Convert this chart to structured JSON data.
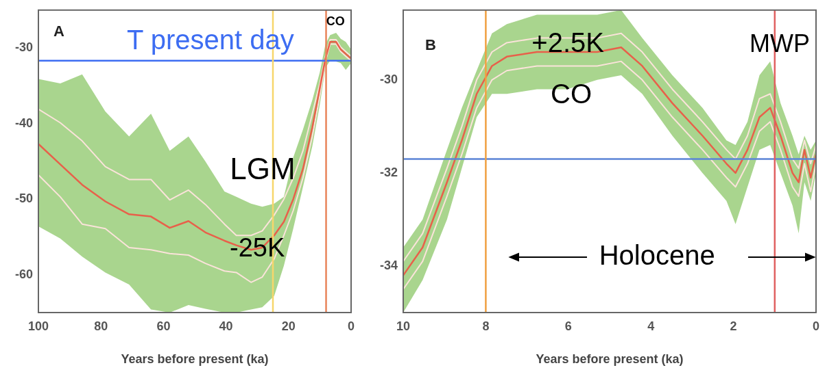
{
  "chart_data": [
    {
      "type": "line",
      "title": "A",
      "xlabel": "Years before present (ka)",
      "x": [
        100,
        93,
        86,
        78.6,
        71,
        64,
        58,
        52,
        46.6,
        40.5,
        36.7,
        32,
        28.4,
        24.6,
        21.5,
        18.5,
        15.4,
        12.4,
        10,
        8.2,
        6.7,
        4.8,
        3.3,
        1.7,
        0
      ],
      "series": [
        {
          "color": "#e8604a",
          "values": [
            -42.7,
            -45.4,
            -48.1,
            -50.3,
            -52,
            -52.3,
            -53.8,
            -52.9,
            -54.4,
            -55.5,
            -56.1,
            -56.7,
            -56.4,
            -54.8,
            -53,
            -50,
            -46,
            -40.5,
            -35.3,
            -31.4,
            -29.2,
            -29.2,
            -30.2,
            -30.8,
            -31.4
          ],
          "lower": [
            -53.6,
            -55.2,
            -57.6,
            -59.7,
            -61.3,
            -64.6,
            -65,
            -64,
            -64.5,
            -65,
            -65,
            -64.6,
            -64.3,
            -62.8,
            -58.8,
            -53.9,
            -48.4,
            -43,
            -37.5,
            -32.6,
            -31.7,
            -31.8,
            -32,
            -32.9,
            -32
          ],
          "upper": [
            -34.1,
            -34.7,
            -33.5,
            -38.4,
            -41.7,
            -38.7,
            -43.6,
            -41.7,
            -45,
            -49,
            -49.7,
            -50.6,
            -51,
            -50.6,
            -49.7,
            -44.5,
            -40.8,
            -36.9,
            -33.2,
            -29.5,
            -28.3,
            -28,
            -28.8,
            -29.2,
            -30.2
          ]
        },
        {
          "color": "#fbe3da",
          "values": [
            -38.1,
            -39.9,
            -42.3,
            -45.7,
            -47.4,
            -47.4,
            -50.1,
            -48.8,
            -50.7,
            -53.3,
            -54.8,
            -54.8,
            -54.2,
            -52.1,
            -50,
            -47.2,
            -43.6,
            -38.7,
            -34.7,
            -31.1,
            -28.9,
            -28.9,
            -29.9,
            -30.5,
            -31.1
          ]
        },
        {
          "color": "#fbe3da",
          "values": [
            -46.8,
            -49.7,
            -53.3,
            -53.9,
            -56.4,
            -56.7,
            -57.2,
            -57.4,
            -58.5,
            -59.5,
            -59.7,
            -61,
            -60.3,
            -57.9,
            -54.8,
            -51.5,
            -47.2,
            -41.7,
            -36.3,
            -31.8,
            -29.5,
            -29.5,
            -30.5,
            -31.1,
            -31.7
          ]
        }
      ],
      "xlim": [
        100,
        0
      ],
      "xticks": [
        100,
        80,
        60,
        40,
        20,
        0
      ],
      "ylim": [
        -65,
        -25
      ],
      "yticks": [
        -30,
        -40,
        -50,
        -60
      ],
      "ref_lines": [
        {
          "axis": "y",
          "value": -31.7,
          "label": "T present day",
          "color": "#3d6df2"
        },
        {
          "axis": "x",
          "value": 25,
          "color": "#f7d66b"
        },
        {
          "axis": "x",
          "value": 8,
          "color": "#e9845a"
        }
      ],
      "annotations": [
        "CO",
        "LGM",
        "-25K"
      ]
    },
    {
      "type": "line",
      "title": "B",
      "xlabel": "Years before present (ka)",
      "x": [
        10,
        9.53,
        8.94,
        8.58,
        8.22,
        7.85,
        7.49,
        6.76,
        6.03,
        5.3,
        4.72,
        4.21,
        3.48,
        2.75,
        2.17,
        1.95,
        1.66,
        1.37,
        1.11,
        0.86,
        0.57,
        0.42,
        0.28,
        0.13,
        0
      ],
      "series": [
        {
          "color": "#e8604a",
          "values": [
            -34.2,
            -33.6,
            -32.2,
            -31.3,
            -30.3,
            -29.7,
            -29.5,
            -29.4,
            -29.4,
            -29.4,
            -29.3,
            -29.7,
            -30.5,
            -31.2,
            -31.8,
            -32,
            -31.5,
            -30.8,
            -30.6,
            -31.2,
            -32,
            -32.2,
            -31.5,
            -32.1,
            -31.6
          ],
          "lower": [
            -35,
            -34.3,
            -33,
            -31.9,
            -30.8,
            -30.3,
            -30.3,
            -30.2,
            -30.2,
            -30,
            -29.9,
            -30.3,
            -31.2,
            -32,
            -32.6,
            -33.1,
            -32.3,
            -31.5,
            -31.4,
            -32,
            -32.7,
            -33.3,
            -32.2,
            -32.6,
            -32
          ],
          "upper": [
            -33.6,
            -33,
            -31.5,
            -30.6,
            -29.8,
            -29,
            -28.8,
            -28.6,
            -28.6,
            -28.6,
            -28.5,
            -29.1,
            -29.9,
            -30.6,
            -31.3,
            -31.4,
            -30.9,
            -29.9,
            -29.6,
            -30.5,
            -31.2,
            -31.6,
            -31.2,
            -31.5,
            -31.3
          ]
        },
        {
          "color": "#fbe3da",
          "values": [
            -33.9,
            -33.3,
            -31.9,
            -31,
            -30,
            -29.4,
            -29.2,
            -29.1,
            -29.1,
            -29.1,
            -29,
            -29.4,
            -30.2,
            -30.9,
            -31.5,
            -31.7,
            -31.2,
            -30.4,
            -30.3,
            -30.9,
            -31.7,
            -31.9,
            -31.3,
            -31.8,
            -31.4
          ]
        },
        {
          "color": "#fbe3da",
          "values": [
            -34.5,
            -33.9,
            -32.5,
            -31.6,
            -30.6,
            -30,
            -29.8,
            -29.7,
            -29.7,
            -29.7,
            -29.6,
            -30,
            -30.8,
            -31.5,
            -32.1,
            -32.3,
            -31.8,
            -31.1,
            -30.9,
            -31.5,
            -32.3,
            -32.5,
            -31.8,
            -32.4,
            -31.8
          ]
        }
      ],
      "xlim": [
        10,
        0
      ],
      "xticks": [
        10,
        8,
        6,
        4,
        2,
        0
      ],
      "ylim": [
        -35,
        -28.5
      ],
      "yticks": [
        -30,
        -32,
        -34
      ],
      "ref_lines": [
        {
          "axis": "y",
          "value": -31.7,
          "color": "#5b84d6"
        },
        {
          "axis": "x",
          "value": 8,
          "color": "#f0a040"
        },
        {
          "axis": "x",
          "value": 1,
          "color": "#e06060"
        }
      ],
      "annotations": [
        "+2.5K",
        "CO",
        "MWP",
        "Holocene"
      ]
    }
  ]
}
